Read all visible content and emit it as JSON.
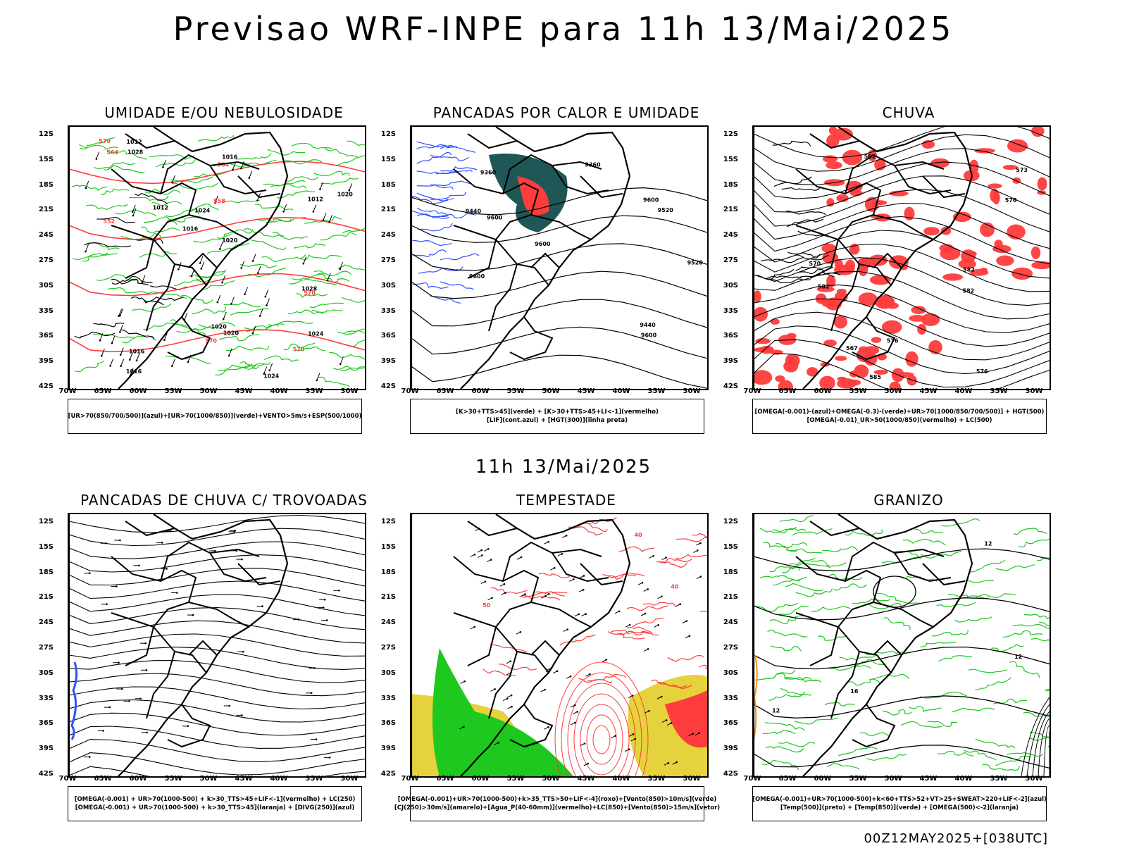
{
  "title": "Previsao WRF-INPE  para 11h 13/Mai/2025",
  "mid_title": "11h 13/Mai/2025",
  "footer": "00Z12MAY2025+[038UTC]",
  "axes": {
    "y_ticks": [
      "12S",
      "15S",
      "18S",
      "21S",
      "24S",
      "27S",
      "30S",
      "33S",
      "36S",
      "39S",
      "42S"
    ],
    "x_ticks": [
      "70W",
      "65W",
      "60W",
      "55W",
      "50W",
      "45W",
      "40W",
      "35W",
      "30W"
    ]
  },
  "colors": {
    "green": "#1ec81e",
    "red": "#ff3c3c",
    "blue": "#3050ff",
    "teal": "#1f5656",
    "yellow": "#e6d23c",
    "orange": "#ff8c1a"
  },
  "panels": [
    {
      "title": "UMIDADE E/OU NEBULOSIDADE",
      "legend": [
        "[UR>70(850/700/500)](azul)+[UR>70(1000/850)](verde)+VENTO>5m/s+ESP(500/1000)"
      ],
      "contour_labels": [
        "1016",
        "1016",
        "1016",
        "1016",
        "1020",
        "1024",
        "1020",
        "1024",
        "1024",
        "1020",
        "1028",
        "1020",
        "1012",
        "1012",
        "1012",
        "1028",
        "570",
        "570",
        "570",
        "564",
        "564",
        "552",
        "558",
        "570"
      ]
    },
    {
      "title": "PANCADAS POR CALOR E UMIDADE",
      "legend": [
        "[K>30+TTS>45](verde) + [K>30+TTS>45+LI<-1](vermelho)",
        "[LIF](cont.azul) + [HGT(300)](linha preta)"
      ],
      "contour_labels": [
        "9600",
        "9600",
        "9600",
        "9600",
        "9600",
        "9520",
        "9520",
        "9440",
        "9440",
        "9360",
        "9360"
      ]
    },
    {
      "title": "CHUVA",
      "legend": [
        "[OMEGA(-0.001)-(azul)+OMEGA(-0.3)-(verde)+UR>70(1000/850/700/500)] + HGT(500)",
        "[OMEGA(-0.01)_UR>50(1000/850)(vermelho) + LC(500)"
      ],
      "contour_labels": [
        "585",
        "582",
        "582",
        "582",
        "576",
        "576",
        "576",
        "570",
        "573",
        "567",
        "582"
      ]
    },
    {
      "title": "PANCADAS DE CHUVA C/ TROVOADAS",
      "legend": [
        "[OMEGA(-0.001) + UR>70(1000-500) + k>30_TTS>45+LIF<-1](vermelho) + LC(250)",
        "[OMEGA(-0.001) + UR>70(1000-500) + k>30_TTS>45](laranja) + [DIVG(250)](azul)"
      ],
      "contour_labels": []
    },
    {
      "title": "TEMPESTADE",
      "legend": [
        "[OMEGA(-0.001)+UR>70(1000-500)+k>35_TTS>50+LIF<-4](roxo)+[Vento(850)>10m/s](verde)",
        "[CJ(250)>30m/s](amarelo)+[Agua_P(40-60mm)](vermelho)+LC(850)+[Vento(850)>15m/s](vetor)"
      ],
      "contour_labels": [
        "40",
        "50",
        "40"
      ]
    },
    {
      "title": "GRANIZO",
      "legend": [
        "[OMEGA(-0.001)+UR>70(1000-500)+k<60+TTS>52+VT>25+SWEAT>220+LIF<-2](azul)",
        "[Temp(500)](preto) + [Temp(850)](verde) + [OMEGA(500)<-2](laranja)"
      ],
      "contour_labels": [
        "12",
        "12",
        "16",
        "12"
      ]
    }
  ]
}
